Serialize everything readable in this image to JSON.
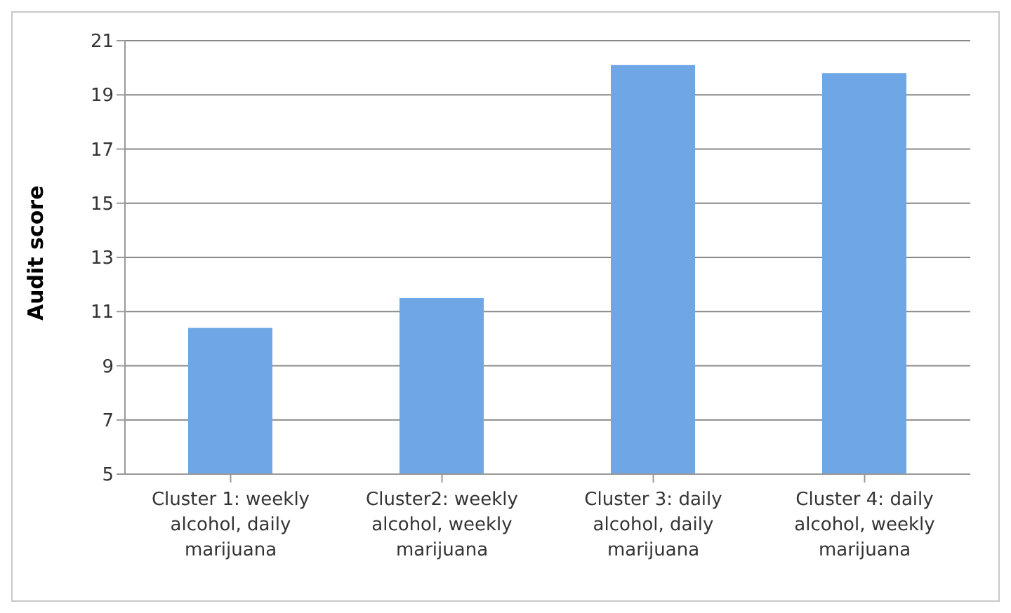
{
  "chart_data": {
    "type": "bar",
    "ylabel": "Audit score",
    "categories": [
      "Cluster 1: weekly alcohol, daily marijuana",
      "Cluster2: weekly alcohol, weekly marijuana",
      "Cluster 3: daily alcohol, daily marijuana",
      "Cluster 4: daily alcohol, weekly marijuana"
    ],
    "values": [
      10.4,
      11.5,
      20.1,
      19.8
    ],
    "color": "#6fa6e6",
    "ylim": [
      5,
      21
    ],
    "yticks": [
      5,
      7,
      9,
      11,
      13,
      15,
      17,
      19,
      21
    ],
    "grid": "y"
  }
}
